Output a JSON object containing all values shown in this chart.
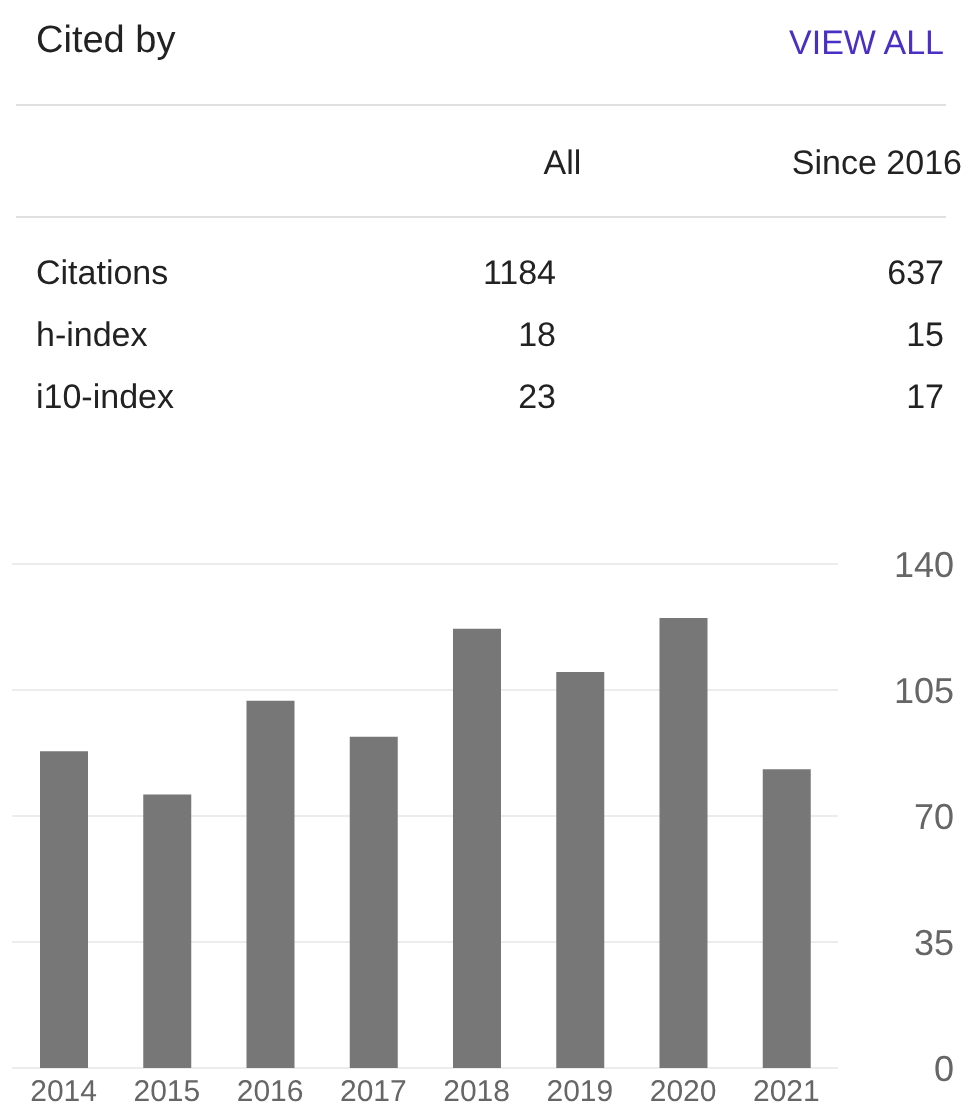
{
  "chart_data": {
    "type": "bar",
    "title": "Cited by",
    "annotations": [
      "VIEW ALL",
      "All",
      "Since 2016",
      "Citations",
      "1184",
      "637",
      "h-index",
      "18",
      "15",
      "i10-index",
      "23",
      "17"
    ],
    "categories": [
      "2014",
      "2015",
      "2016",
      "2017",
      "2018",
      "2019",
      "2020",
      "2021"
    ],
    "values": [
      88,
      76,
      102,
      92,
      122,
      110,
      125,
      83
    ],
    "color": "#777777",
    "ylim": [
      0,
      140
    ],
    "yticks": [
      0,
      35,
      70,
      105,
      140
    ],
    "grid": "y"
  }
}
